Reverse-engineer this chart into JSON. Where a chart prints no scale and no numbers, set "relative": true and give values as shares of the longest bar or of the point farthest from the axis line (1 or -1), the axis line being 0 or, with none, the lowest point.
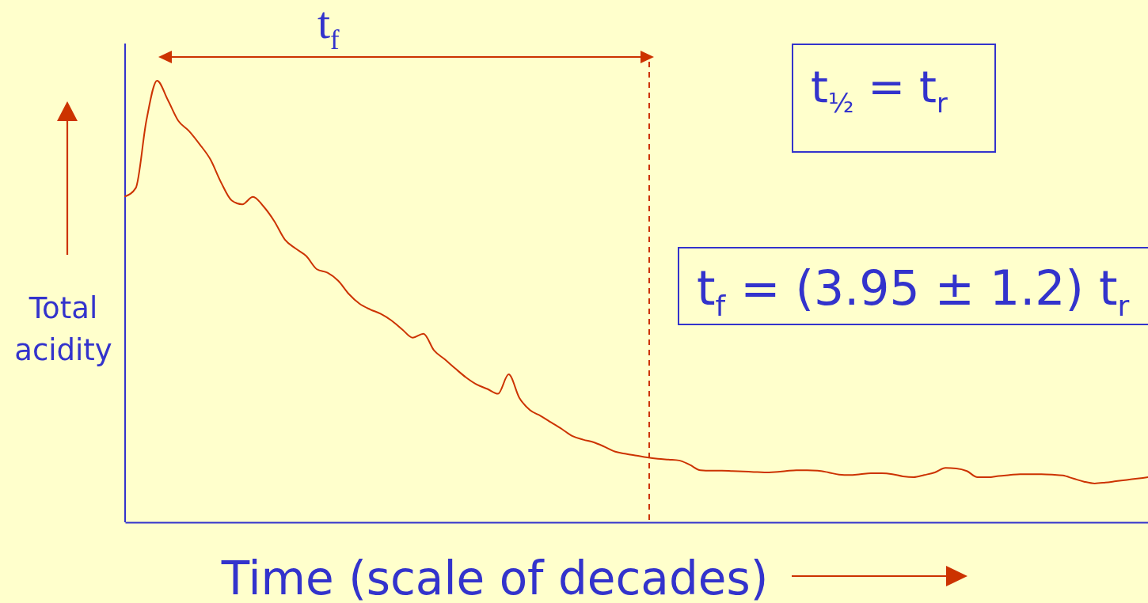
{
  "chart_data": {
    "type": "line",
    "relative": true,
    "color": "#cc3300",
    "xlabel": "Time (scale of decades)",
    "ylabel": "Total acidity",
    "annotations": [
      "t$_{f}$",
      "t$_{½}$ = t$_{r}$",
      "t$_{f}$ = (3.95 ± 1.2) t$_{r}$"
    ],
    "categories": [
      null,
      null,
      null,
      null,
      null,
      null,
      null,
      null,
      null,
      null,
      null,
      null,
      null,
      null,
      null,
      null,
      null,
      null,
      null,
      null,
      null,
      null,
      null,
      null,
      null,
      null,
      null,
      null,
      null,
      null,
      null,
      null,
      null,
      null,
      null,
      null,
      null,
      null,
      null,
      null,
      null,
      null,
      null,
      null,
      null,
      null,
      null,
      null,
      null,
      null,
      null,
      null,
      null,
      null,
      null,
      null,
      null,
      null,
      null,
      null,
      null,
      null,
      null,
      null,
      null,
      null,
      null,
      null,
      null,
      null,
      null,
      null,
      null,
      null,
      null,
      null,
      null,
      null,
      null,
      null,
      null,
      null,
      null,
      null,
      null,
      null,
      null,
      null,
      null,
      null,
      null,
      null,
      null,
      null,
      null,
      null,
      null
    ],
    "values": [
      0.738,
      0.757,
      0.91,
      1,
      0.957,
      0.909,
      0.886,
      0.856,
      0.822,
      0.77,
      0.729,
      0.72,
      0.737,
      0.715,
      0.682,
      0.64,
      0.62,
      0.603,
      0.573,
      0.565,
      0.547,
      0.517,
      0.495,
      0.482,
      0.472,
      0.457,
      0.437,
      0.418,
      0.427,
      0.389,
      0.369,
      0.348,
      0.328,
      0.312,
      0.302,
      0.291,
      0.335,
      0.282,
      0.254,
      0.241,
      0.226,
      0.211,
      0.195,
      0.187,
      0.181,
      0.171,
      0.16,
      0.155,
      0.151,
      0.147,
      0.144,
      0.142,
      0.14,
      0.13,
      0.118,
      0.117,
      0.117,
      0.116,
      0.115,
      0.114,
      0.113,
      0.114,
      0.116,
      0.118,
      0.118,
      0.117,
      0.113,
      0.108,
      0.107,
      0.109,
      0.111,
      0.111,
      0.109,
      0.104,
      0.102,
      0.107,
      0.113,
      0.123,
      0.122,
      0.116,
      0.102,
      0.102,
      0.105,
      0.107,
      0.109,
      0.109,
      0.109,
      0.108,
      0.106,
      0.099,
      0.092,
      0.088,
      0.09,
      0.093,
      0.096,
      0.099,
      0.102
    ]
  }
}
